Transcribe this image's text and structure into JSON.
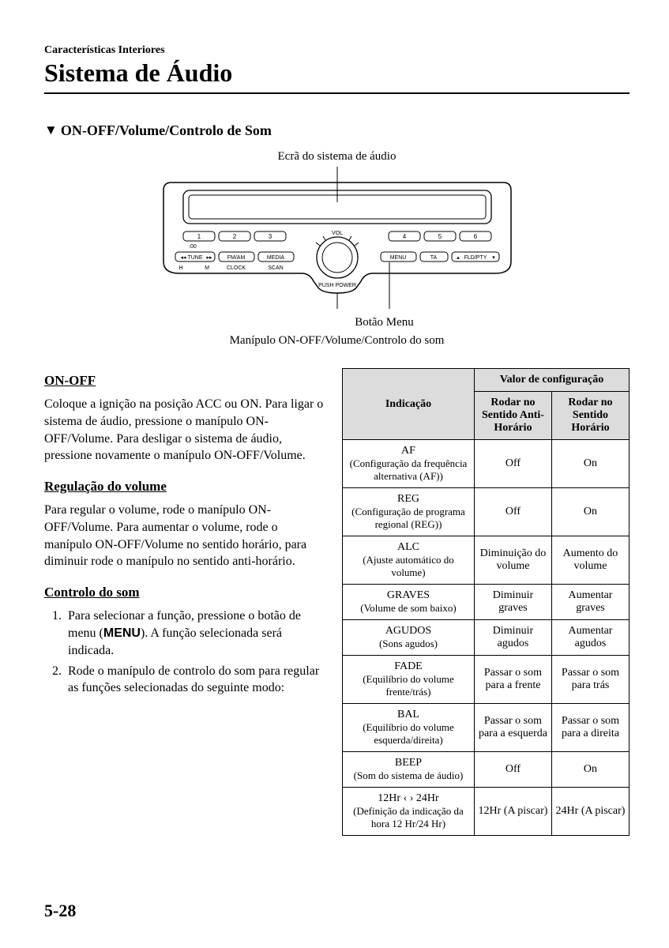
{
  "header": {
    "sectionLabel": "Características Interiores",
    "chapterTitle": "Sistema de Áudio"
  },
  "subHeading": "ON-OFF/Volume/Controlo de Som",
  "diagram": {
    "calloutTop": "Ecrã do sistema de áudio",
    "calloutMid": "Botão Menu",
    "calloutBottom": "Manípulo ON-OFF/Volume/Controlo do som",
    "volLabel": "VOL",
    "pushPower": "PUSH POWER",
    "presets": [
      "1",
      "2",
      "3",
      "4",
      "5",
      "6"
    ],
    "clock00": ":00",
    "leftButtons": [
      "TUNE",
      "FM/AM",
      "MEDIA"
    ],
    "leftSub": [
      "H",
      "M",
      "CLOCK",
      "SCAN"
    ],
    "rightButtons": [
      "MENU",
      "TA",
      "FLD/PTY"
    ]
  },
  "left": {
    "h1": "ON-OFF",
    "p1": "Coloque a ignição na posição ACC ou ON. Para ligar o sistema de áudio, pressione o manípulo ON-OFF/Volume. Para desligar o sistema de áudio, pressione novamente o manípulo ON-OFF/Volume.",
    "h2": "Regulação do volume",
    "p2": "Para regular o volume, rode o manípulo ON-OFF/Volume. Para aumentar o volume, rode o manípulo ON-OFF/Volume no sentido horário, para diminuir rode o manípulo no sentido anti-horário.",
    "h3": "Controlo do som",
    "step1a": "Para selecionar a função, pressione o botão de menu (",
    "step1menu": "MENU",
    "step1b": "). A função selecionada será indicada.",
    "step2": "Rode o manípulo de controlo do som para regular as funções selecionadas do seguinte modo:"
  },
  "table": {
    "colIndicacao": "Indicação",
    "colValor": "Valor de configuração",
    "colCCW": "Rodar no Sentido Anti-Horário",
    "colCW": "Rodar no Sentido Horário",
    "rows": [
      {
        "main": "AF",
        "sub": "(Configuração da frequência alternativa (AF))",
        "ccw": "Off",
        "cw": "On"
      },
      {
        "main": "REG",
        "sub": "(Configuração de programa regional (REG))",
        "ccw": "Off",
        "cw": "On"
      },
      {
        "main": "ALC",
        "sub": "(Ajuste automático do volume)",
        "ccw": "Diminuição do volume",
        "cw": "Aumento do volume"
      },
      {
        "main": "GRAVES",
        "sub": "(Volume de som baixo)",
        "ccw": "Diminuir graves",
        "cw": "Aumentar graves"
      },
      {
        "main": "AGUDOS",
        "sub": "(Sons agudos)",
        "ccw": "Diminuir agudos",
        "cw": "Aumentar agudos"
      },
      {
        "main": "FADE",
        "sub": "(Equilíbrio do volume frente/trás)",
        "ccw": "Passar o som para a frente",
        "cw": "Passar o som para trás"
      },
      {
        "main": "BAL",
        "sub": "(Equilíbrio do volume esquerda/direita)",
        "ccw": "Passar o som para a esquerda",
        "cw": "Passar o som para a direita"
      },
      {
        "main": "BEEP",
        "sub": "(Som do sistema de áudio)",
        "ccw": "Off",
        "cw": "On"
      },
      {
        "main": "12Hr ‹ › 24Hr",
        "sub": "(Definição da indicação da hora 12 Hr/24 Hr)",
        "ccw": "12Hr (A piscar)",
        "cw": "24Hr (A piscar)"
      }
    ]
  },
  "pageNumber": "5-28"
}
